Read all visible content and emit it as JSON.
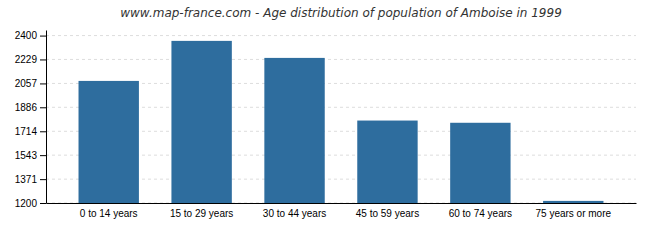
{
  "chart_data": {
    "type": "bar",
    "title": "www.map-france.com - Age distribution of population of Amboise in 1999",
    "categories": [
      "0 to 14 years",
      "15 to 29 years",
      "30 to 44 years",
      "45 to 59 years",
      "60 to 74 years",
      "75 years or more"
    ],
    "values": [
      2075,
      2362,
      2240,
      1791,
      1775,
      1215
    ],
    "color": "#2e6d9e",
    "ylim": [
      1200,
      2440
    ],
    "yticks": [
      1200,
      1371,
      1543,
      1714,
      1886,
      2057,
      2229,
      2400
    ],
    "grid": true
  }
}
